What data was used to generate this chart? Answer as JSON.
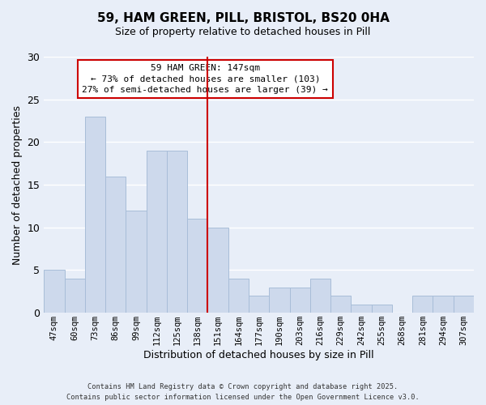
{
  "title_line1": "59, HAM GREEN, PILL, BRISTOL, BS20 0HA",
  "title_line2": "Size of property relative to detached houses in Pill",
  "xlabel": "Distribution of detached houses by size in Pill",
  "ylabel": "Number of detached properties",
  "categories": [
    "47sqm",
    "60sqm",
    "73sqm",
    "86sqm",
    "99sqm",
    "112sqm",
    "125sqm",
    "138sqm",
    "151sqm",
    "164sqm",
    "177sqm",
    "190sqm",
    "203sqm",
    "216sqm",
    "229sqm",
    "242sqm",
    "255sqm",
    "268sqm",
    "281sqm",
    "294sqm",
    "307sqm"
  ],
  "values": [
    5,
    4,
    23,
    16,
    12,
    19,
    19,
    11,
    10,
    4,
    2,
    3,
    3,
    4,
    2,
    1,
    1,
    0,
    2,
    2,
    2
  ],
  "bar_color": "#cdd9ec",
  "bar_edge_color": "#a8bdd8",
  "vline_color": "#cc0000",
  "ylim": [
    0,
    30
  ],
  "yticks": [
    0,
    5,
    10,
    15,
    20,
    25,
    30
  ],
  "annotation_title": "59 HAM GREEN: 147sqm",
  "annotation_line1": "← 73% of detached houses are smaller (103)",
  "annotation_line2": "27% of semi-detached houses are larger (39) →",
  "annotation_box_color": "#ffffff",
  "annotation_box_edge": "#cc0000",
  "footer_line1": "Contains HM Land Registry data © Crown copyright and database right 2025.",
  "footer_line2": "Contains public sector information licensed under the Open Government Licence v3.0.",
  "background_color": "#e8eef8",
  "grid_color": "#ffffff",
  "title_fontsize": 11,
  "subtitle_fontsize": 9
}
